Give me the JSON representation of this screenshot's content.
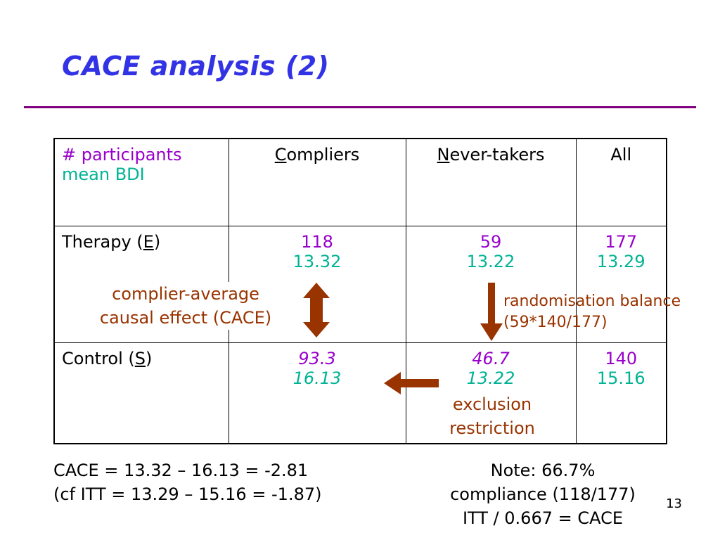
{
  "title": "CACE analysis (2)",
  "colors": {
    "title": "#3333e6",
    "rule": "#800080",
    "count": "#9900cc",
    "mean": "#00b394",
    "annotation": "#993300",
    "arrow": "#993300"
  },
  "table": {
    "header": {
      "legend_count": "# participants",
      "legend_mean": "mean BDI",
      "compliers_initial": "C",
      "compliers_rest": "ompliers",
      "never_initial": "N",
      "never_rest": "ever-takers",
      "all": "All"
    },
    "therapy": {
      "label_pre": "Therapy (",
      "label_letter": "E",
      "label_post": ")",
      "compliers_n": "118",
      "compliers_mean": "13.32",
      "never_n": "59",
      "never_mean": "13.22",
      "all_n": "177",
      "all_mean": "13.29"
    },
    "control": {
      "label_pre": "Control (",
      "label_letter": "S",
      "label_post": ")",
      "compliers_n": "93.3",
      "compliers_mean": "16.13",
      "never_n": "46.7",
      "never_mean": "13.22",
      "all_n": "140",
      "all_mean": "15.16"
    }
  },
  "annotations": {
    "cace_line1": "complier-average",
    "cace_line2": "causal effect (CACE)",
    "rand_line1": "randomisation balance",
    "rand_line2": "(59*140/177)",
    "excl_line1": "exclusion",
    "excl_line2": "restriction"
  },
  "bottom": {
    "left_line1": "CACE = 13.32 – 16.13 = -2.81",
    "left_line2": "(cf ITT = 13.29 – 15.16 = -1.87)",
    "right_line1": "Note: 66.7%",
    "right_line2": "compliance (118/177)",
    "right_line3": "ITT / 0.667 = CACE"
  },
  "page_number": "13",
  "icons": [
    "double-arrow-vertical-icon",
    "arrow-down-icon",
    "arrow-left-icon"
  ]
}
